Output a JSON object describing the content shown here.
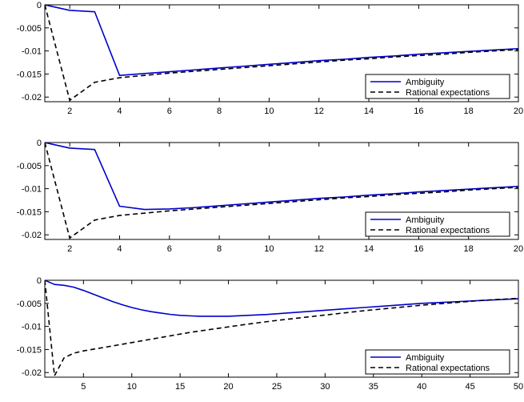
{
  "chart_data": [
    {
      "type": "line",
      "xlim": [
        1,
        20
      ],
      "ylim": [
        -0.021,
        0
      ],
      "xticks": [
        2,
        4,
        6,
        8,
        10,
        12,
        14,
        16,
        18,
        20
      ],
      "yticks": [
        0,
        -0.005,
        -0.01,
        -0.015,
        -0.02
      ],
      "xtick_labels": [
        "2",
        "4",
        "6",
        "8",
        "10",
        "12",
        "14",
        "16",
        "18",
        "20"
      ],
      "ytick_labels": [
        "0",
        "-0.005",
        "-0.01",
        "-0.015",
        "-0.02"
      ],
      "grid": false,
      "legend_position": "bottom-right",
      "series": [
        {
          "name": "Ambiguity",
          "color": "#0000cc",
          "dash": "solid",
          "x": [
            1,
            2,
            3,
            4,
            5,
            6,
            7,
            8,
            9,
            10,
            11,
            12,
            13,
            14,
            15,
            16,
            17,
            18,
            19,
            20
          ],
          "y": [
            0,
            -0.0012,
            -0.0015,
            -0.0153,
            -0.0149,
            -0.0145,
            -0.0141,
            -0.0137,
            -0.0133,
            -0.0129,
            -0.0125,
            -0.0121,
            -0.0118,
            -0.0114,
            -0.0111,
            -0.0107,
            -0.0104,
            -0.0101,
            -0.0098,
            -0.0095
          ]
        },
        {
          "name": "Rational expectations",
          "color": "#000000",
          "dash": "dashed",
          "x": [
            1,
            2,
            3,
            4,
            5,
            6,
            7,
            8,
            9,
            10,
            11,
            12,
            13,
            14,
            15,
            16,
            17,
            18,
            19,
            20
          ],
          "y": [
            0,
            -0.0207,
            -0.0168,
            -0.0158,
            -0.0153,
            -0.0148,
            -0.0144,
            -0.014,
            -0.0136,
            -0.0132,
            -0.0128,
            -0.0124,
            -0.012,
            -0.0117,
            -0.0113,
            -0.011,
            -0.0107,
            -0.0103,
            -0.01,
            -0.0097
          ]
        }
      ]
    },
    {
      "type": "line",
      "xlim": [
        1,
        20
      ],
      "ylim": [
        -0.021,
        0
      ],
      "xticks": [
        2,
        4,
        6,
        8,
        10,
        12,
        14,
        16,
        18,
        20
      ],
      "yticks": [
        0,
        -0.005,
        -0.01,
        -0.015,
        -0.02
      ],
      "xtick_labels": [
        "2",
        "4",
        "6",
        "8",
        "10",
        "12",
        "14",
        "16",
        "18",
        "20"
      ],
      "ytick_labels": [
        "0",
        "-0.005",
        "-0.01",
        "-0.015",
        "-0.02"
      ],
      "grid": false,
      "legend_position": "bottom-right",
      "series": [
        {
          "name": "Ambiguity",
          "color": "#0000cc",
          "dash": "solid",
          "x": [
            1,
            2,
            3,
            4,
            5,
            6,
            7,
            8,
            9,
            10,
            11,
            12,
            13,
            14,
            15,
            16,
            17,
            18,
            19,
            20
          ],
          "y": [
            0,
            -0.0012,
            -0.0015,
            -0.0138,
            -0.0145,
            -0.0144,
            -0.0141,
            -0.0137,
            -0.0133,
            -0.0129,
            -0.0125,
            -0.0121,
            -0.0118,
            -0.0114,
            -0.0111,
            -0.0107,
            -0.0104,
            -0.0101,
            -0.0098,
            -0.0095
          ]
        },
        {
          "name": "Rational expectations",
          "color": "#000000",
          "dash": "dashed",
          "x": [
            1,
            2,
            3,
            4,
            5,
            6,
            7,
            8,
            9,
            10,
            11,
            12,
            13,
            14,
            15,
            16,
            17,
            18,
            19,
            20
          ],
          "y": [
            0,
            -0.0207,
            -0.0168,
            -0.0158,
            -0.0153,
            -0.0148,
            -0.0144,
            -0.014,
            -0.0136,
            -0.0132,
            -0.0128,
            -0.0124,
            -0.012,
            -0.0117,
            -0.0113,
            -0.011,
            -0.0107,
            -0.0103,
            -0.01,
            -0.0097
          ]
        }
      ]
    },
    {
      "type": "line",
      "xlim": [
        1,
        50
      ],
      "ylim": [
        -0.021,
        0
      ],
      "xticks": [
        5,
        10,
        15,
        20,
        25,
        30,
        35,
        40,
        45,
        50
      ],
      "yticks": [
        0,
        -0.005,
        -0.01,
        -0.015,
        -0.02
      ],
      "xtick_labels": [
        "5",
        "10",
        "15",
        "20",
        "25",
        "30",
        "35",
        "40",
        "45",
        "50"
      ],
      "ytick_labels": [
        "0",
        "-0.005",
        "-0.01",
        "-0.015",
        "-0.02"
      ],
      "grid": false,
      "legend_position": "bottom-right",
      "series": [
        {
          "name": "Ambiguity",
          "color": "#0000cc",
          "dash": "solid",
          "x": [
            1,
            2,
            3,
            4,
            5,
            6,
            7,
            8,
            9,
            10,
            11,
            12,
            13,
            14,
            15,
            16,
            17,
            18,
            19,
            20,
            22,
            24,
            26,
            28,
            30,
            32,
            34,
            36,
            38,
            40,
            42,
            44,
            46,
            48,
            50
          ],
          "y": [
            0,
            -0.0009,
            -0.0011,
            -0.0015,
            -0.0022,
            -0.003,
            -0.0038,
            -0.0046,
            -0.0053,
            -0.0059,
            -0.0064,
            -0.0068,
            -0.0071,
            -0.0074,
            -0.0076,
            -0.0077,
            -0.0078,
            -0.0078,
            -0.0078,
            -0.0078,
            -0.0076,
            -0.0074,
            -0.0071,
            -0.0068,
            -0.0065,
            -0.0062,
            -0.0059,
            -0.0056,
            -0.0053,
            -0.005,
            -0.0048,
            -0.0046,
            -0.0044,
            -0.0042,
            -0.004
          ]
        },
        {
          "name": "Rational expectations",
          "color": "#000000",
          "dash": "dashed",
          "x": [
            1,
            2,
            3,
            4,
            5,
            7,
            10,
            13,
            16,
            19,
            22,
            25,
            28,
            31,
            34,
            37,
            40,
            43,
            46,
            50
          ],
          "y": [
            0,
            -0.0207,
            -0.0168,
            -0.0158,
            -0.0153,
            -0.0146,
            -0.0135,
            -0.0124,
            -0.0113,
            -0.0104,
            -0.0095,
            -0.0087,
            -0.008,
            -0.0073,
            -0.0066,
            -0.006,
            -0.0054,
            -0.0049,
            -0.0044,
            -0.0039
          ]
        }
      ]
    }
  ]
}
